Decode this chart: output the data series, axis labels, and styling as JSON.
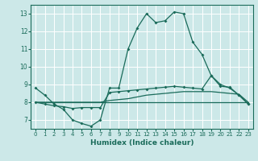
{
  "title": "",
  "xlabel": "Humidex (Indice chaleur)",
  "bg_color": "#cce8e8",
  "grid_color": "#ffffff",
  "line_color": "#1a6b5a",
  "xlim": [
    -0.5,
    23.5
  ],
  "ylim": [
    6.5,
    13.5
  ],
  "yticks": [
    7,
    8,
    9,
    10,
    11,
    12,
    13
  ],
  "xticks": [
    0,
    1,
    2,
    3,
    4,
    5,
    6,
    7,
    8,
    9,
    10,
    11,
    12,
    13,
    14,
    15,
    16,
    17,
    18,
    19,
    20,
    21,
    22,
    23
  ],
  "series1_x": [
    0,
    1,
    2,
    3,
    4,
    5,
    6,
    7,
    8,
    9,
    10,
    11,
    12,
    13,
    14,
    15,
    16,
    17,
    18,
    19,
    20,
    21,
    22,
    23
  ],
  "series1_y": [
    8.8,
    8.4,
    7.9,
    7.6,
    7.0,
    6.8,
    6.65,
    7.0,
    8.8,
    8.8,
    11.0,
    12.2,
    13.0,
    12.5,
    12.6,
    13.1,
    13.0,
    11.4,
    10.7,
    9.5,
    9.0,
    8.8,
    8.4,
    7.9
  ],
  "series2_x": [
    0,
    1,
    2,
    3,
    4,
    5,
    6,
    7,
    8,
    9,
    10,
    11,
    12,
    13,
    14,
    15,
    16,
    17,
    18,
    19,
    20,
    21,
    22,
    23
  ],
  "series2_y": [
    8.0,
    7.9,
    7.8,
    7.75,
    7.65,
    7.7,
    7.7,
    7.7,
    8.55,
    8.6,
    8.65,
    8.7,
    8.75,
    8.8,
    8.85,
    8.9,
    8.85,
    8.8,
    8.75,
    9.5,
    8.9,
    8.85,
    8.4,
    7.9
  ],
  "series3_x": [
    0,
    1,
    2,
    3,
    4,
    5,
    6,
    7,
    8,
    9,
    10,
    11,
    12,
    13,
    14,
    15,
    16,
    17,
    18,
    19,
    20,
    21,
    22,
    23
  ],
  "series3_y": [
    8.0,
    8.0,
    8.0,
    8.0,
    8.0,
    8.0,
    8.0,
    8.0,
    8.1,
    8.15,
    8.2,
    8.3,
    8.4,
    8.45,
    8.5,
    8.55,
    8.6,
    8.6,
    8.6,
    8.6,
    8.55,
    8.5,
    8.45,
    8.0
  ],
  "series4_x": [
    0,
    1,
    2,
    3,
    4,
    5,
    6,
    7,
    8,
    9,
    10,
    11,
    12,
    13,
    14,
    15,
    16,
    17,
    18,
    19,
    20,
    21,
    22,
    23
  ],
  "series4_y": [
    8.0,
    8.0,
    8.0,
    8.0,
    8.0,
    8.0,
    8.0,
    8.0,
    8.0,
    8.0,
    8.0,
    8.0,
    8.0,
    8.0,
    8.0,
    8.0,
    8.0,
    8.0,
    8.0,
    8.0,
    8.0,
    8.0,
    8.0,
    8.0
  ]
}
